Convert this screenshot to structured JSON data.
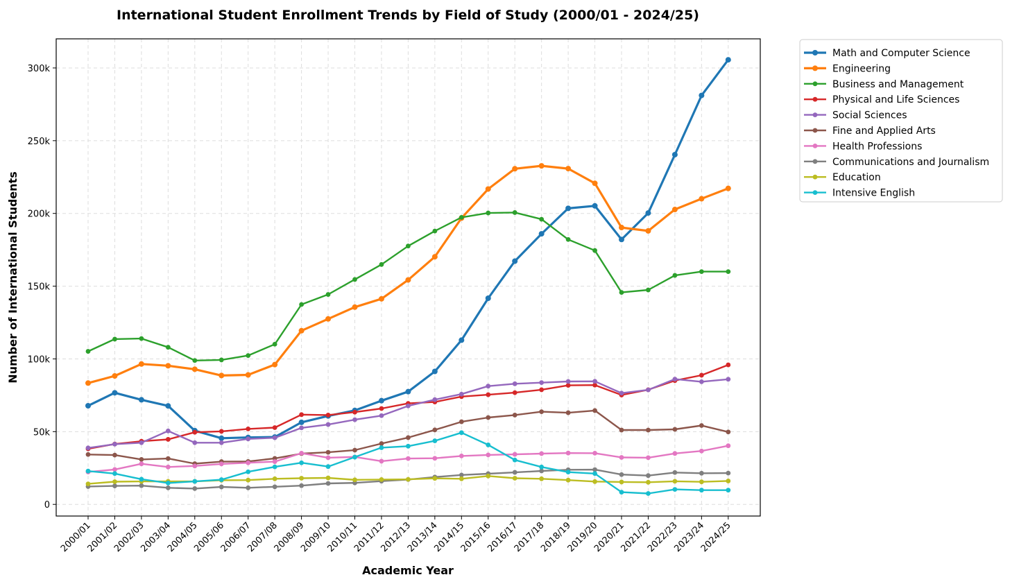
{
  "chart_data": {
    "type": "line",
    "title": "International Student Enrollment Trends by Field of Study (2000/01 - 2024/25)",
    "xlabel": "Academic Year",
    "ylabel": "Number of International Students",
    "ylim": [
      -8000,
      320000
    ],
    "yticks": [
      0,
      50000,
      100000,
      150000,
      200000,
      250000,
      300000
    ],
    "ytick_labels": [
      "0",
      "50k",
      "100k",
      "150k",
      "200k",
      "250k",
      "300k"
    ],
    "grid": true,
    "legend_position": "outside-right",
    "categories": [
      "2000/01",
      "2001/02",
      "2002/03",
      "2003/04",
      "2004/05",
      "2005/06",
      "2006/07",
      "2007/08",
      "2008/09",
      "2009/10",
      "2010/11",
      "2011/12",
      "2012/13",
      "2013/14",
      "2014/15",
      "2015/16",
      "2016/17",
      "2017/18",
      "2018/19",
      "2019/20",
      "2020/21",
      "2021/22",
      "2022/23",
      "2023/24",
      "2024/25"
    ],
    "series": [
      {
        "name": "Math and Computer Science",
        "color": "#1f77b4",
        "bold": true,
        "values": [
          67800,
          76700,
          71900,
          67700,
          50700,
          45500,
          46000,
          46300,
          56400,
          60800,
          64600,
          71300,
          77500,
          91400,
          112900,
          141700,
          167200,
          186000,
          203500,
          205200,
          182100,
          200300,
          240400,
          281100,
          305600
        ]
      },
      {
        "name": "Engineering",
        "color": "#ff7f0e",
        "bold": true,
        "values": [
          83400,
          88300,
          96500,
          95300,
          92900,
          88600,
          89000,
          96100,
          119400,
          127500,
          135600,
          141300,
          154300,
          170200,
          196800,
          216800,
          230700,
          232700,
          230800,
          220700,
          190300,
          188000,
          202700,
          210100,
          217200
        ]
      },
      {
        "name": "Business and Management",
        "color": "#2ca02c",
        "bold": false,
        "values": [
          105200,
          113600,
          114000,
          108000,
          98900,
          99300,
          102300,
          110100,
          137400,
          144300,
          154600,
          164900,
          177600,
          187900,
          197300,
          200300,
          200600,
          196000,
          182100,
          174500,
          145700,
          147400,
          157400,
          160000,
          160000
        ]
      },
      {
        "name": "Physical and Life Sciences",
        "color": "#d62728",
        "bold": false,
        "values": [
          38200,
          41500,
          43400,
          44700,
          49600,
          50200,
          51900,
          52800,
          61700,
          61400,
          63400,
          65900,
          69400,
          70400,
          74100,
          75400,
          76800,
          78800,
          81800,
          82000,
          75200,
          78800,
          85100,
          88800,
          95900
        ]
      },
      {
        "name": "Social Sciences",
        "color": "#9467bd",
        "bold": false,
        "values": [
          38800,
          41400,
          42400,
          50500,
          42400,
          42400,
          45000,
          45800,
          52600,
          54900,
          58200,
          61000,
          67700,
          72000,
          75800,
          81300,
          82900,
          83700,
          84500,
          84600,
          76500,
          78700,
          86100,
          84300,
          86000
        ]
      },
      {
        "name": "Fine and Applied Arts",
        "color": "#8c564b",
        "bold": false,
        "values": [
          34300,
          33900,
          30900,
          31500,
          28000,
          29400,
          29500,
          31600,
          34900,
          35800,
          37300,
          41800,
          45900,
          51200,
          56800,
          59700,
          61400,
          63700,
          63000,
          64500,
          51100,
          51100,
          51600,
          54200,
          49800
        ]
      },
      {
        "name": "Health Professions",
        "color": "#e377c2",
        "bold": false,
        "values": [
          22300,
          24000,
          27900,
          25700,
          26400,
          27800,
          28600,
          29400,
          35200,
          32100,
          32600,
          29700,
          31500,
          31700,
          33300,
          34000,
          34400,
          34900,
          35300,
          35200,
          32300,
          32100,
          35000,
          36700,
          40300
        ]
      },
      {
        "name": "Communications and Journalism",
        "color": "#7f7f7f",
        "bold": false,
        "values": [
          12300,
          12700,
          12900,
          11400,
          10900,
          12000,
          11400,
          12100,
          12900,
          14400,
          14800,
          16000,
          17100,
          18800,
          20200,
          21100,
          22000,
          23000,
          23800,
          23900,
          20500,
          19800,
          21900,
          21400,
          21500
        ]
      },
      {
        "name": "Education",
        "color": "#bcbd22",
        "bold": false,
        "values": [
          14100,
          15600,
          15800,
          15800,
          15800,
          16600,
          16700,
          17600,
          18000,
          18200,
          16900,
          17100,
          17200,
          17900,
          17600,
          19500,
          18000,
          17600,
          16700,
          15700,
          15400,
          15200,
          15900,
          15500,
          16100
        ]
      },
      {
        "name": "Intensive English",
        "color": "#17becf",
        "bold": false,
        "values": [
          22900,
          21200,
          17300,
          14700,
          15800,
          17000,
          22400,
          25800,
          28600,
          26000,
          32500,
          39000,
          40000,
          43700,
          49300,
          40900,
          30500,
          25700,
          22200,
          21200,
          8400,
          7500,
          10300,
          9800,
          9800
        ]
      }
    ]
  }
}
